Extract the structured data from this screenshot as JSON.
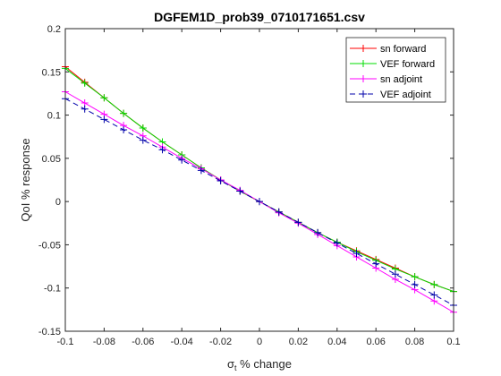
{
  "chart_data": {
    "type": "line",
    "title": "DGFEM1D_prob39_0710171651.csv",
    "xlabel_symbol": "σ",
    "xlabel_subscript": "t",
    "xlabel_suffix": " % change",
    "ylabel": "QoI % response",
    "xlim": [
      -0.1,
      0.1
    ],
    "ylim": [
      -0.15,
      0.2
    ],
    "xticks": [
      -0.1,
      -0.08,
      -0.06,
      -0.04,
      -0.02,
      0,
      0.02,
      0.04,
      0.06,
      0.08,
      0.1
    ],
    "xtick_labels": [
      "-0.1",
      "-0.08",
      "-0.06",
      "-0.04",
      "-0.02",
      "0",
      "0.02",
      "0.04",
      "0.06",
      "0.08",
      "0.1"
    ],
    "yticks": [
      -0.15,
      -0.1,
      -0.05,
      0,
      0.05,
      0.1,
      0.15,
      0.2
    ],
    "ytick_labels": [
      "-0.15",
      "-0.1",
      "-0.05",
      "0",
      "0.05",
      "0.1",
      "0.15",
      "0.2"
    ],
    "grid": false,
    "legend_position": "top-right",
    "x": [
      -0.1,
      -0.09,
      -0.08,
      -0.07,
      -0.06,
      -0.05,
      -0.04,
      -0.03,
      -0.02,
      -0.01,
      0,
      0.01,
      0.02,
      0.03,
      0.04,
      0.05,
      0.06,
      0.07,
      0.08,
      0.09,
      0.1
    ],
    "series": [
      {
        "name": "sn forward",
        "color": "#ff0000",
        "dash": "solid",
        "values": [
          0.156,
          0.138,
          0.12,
          0.102,
          0.085,
          0.069,
          0.054,
          0.039,
          0.025,
          0.012,
          0,
          -0.012,
          -0.024,
          -0.036,
          -0.047,
          -0.057,
          -0.067,
          -0.077,
          -0.087,
          -0.096,
          -0.104
        ]
      },
      {
        "name": "VEF forward",
        "color": "#00dd00",
        "dash": "solid",
        "values": [
          0.154,
          0.137,
          0.12,
          0.102,
          0.085,
          0.069,
          0.054,
          0.039,
          0.025,
          0.012,
          0,
          -0.012,
          -0.024,
          -0.036,
          -0.047,
          -0.058,
          -0.068,
          -0.078,
          -0.087,
          -0.096,
          -0.104
        ]
      },
      {
        "name": "sn adjoint",
        "color": "#ff00ff",
        "dash": "solid",
        "values": [
          0.127,
          0.114,
          0.101,
          0.088,
          0.076,
          0.063,
          0.05,
          0.038,
          0.025,
          0.013,
          0,
          -0.013,
          -0.025,
          -0.038,
          -0.051,
          -0.064,
          -0.077,
          -0.09,
          -0.102,
          -0.115,
          -0.128
        ]
      },
      {
        "name": "VEF adjoint",
        "color": "#0000aa",
        "dash": "dashed",
        "values": [
          0.119,
          0.107,
          0.095,
          0.083,
          0.071,
          0.06,
          0.048,
          0.036,
          0.024,
          0.012,
          0,
          -0.012,
          -0.024,
          -0.036,
          -0.048,
          -0.06,
          -0.072,
          -0.084,
          -0.096,
          -0.108,
          -0.12
        ]
      }
    ]
  }
}
